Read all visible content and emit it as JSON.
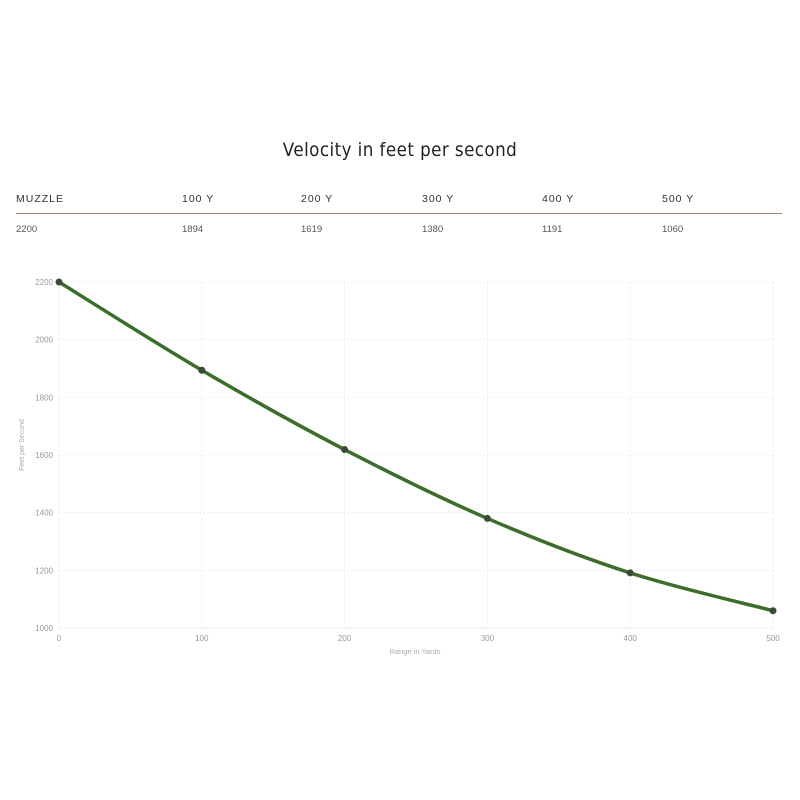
{
  "title": "Velocity in feet per second",
  "table": {
    "headers": [
      "MUZZLE",
      "100 Y",
      "200 Y",
      "300 Y",
      "400 Y",
      "500 Y"
    ],
    "values": [
      "2200",
      "1894",
      "1619",
      "1380",
      "1191",
      "1060"
    ]
  },
  "chart_data": {
    "type": "line",
    "xlabel": "Range in Yards",
    "ylabel": "Feet per Second",
    "x": [
      0,
      100,
      200,
      300,
      400,
      500
    ],
    "series": [
      {
        "values": [
          2200,
          1894,
          1619,
          1380,
          1191,
          1060
        ]
      }
    ],
    "xlim": [
      0,
      500
    ],
    "ylim": [
      1000,
      2200
    ],
    "xticks": [
      0,
      100,
      200,
      300,
      400,
      500
    ],
    "yticks": [
      1000,
      1200,
      1400,
      1600,
      1800,
      2000,
      2200
    ],
    "grid": true,
    "line_color": "#3b6e2a",
    "marker_color": "#3d4a3a"
  }
}
